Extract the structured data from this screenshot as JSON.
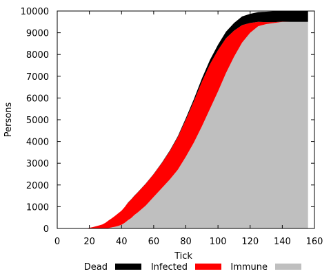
{
  "chart_data": {
    "type": "area",
    "stacked": true,
    "xlabel": "Tick",
    "ylabel": "Persons",
    "xlim": [
      0,
      160
    ],
    "ylim": [
      0,
      10000
    ],
    "x_ticks": [
      0,
      20,
      40,
      60,
      80,
      100,
      120,
      140,
      160
    ],
    "y_ticks": [
      0,
      1000,
      2000,
      3000,
      4000,
      5000,
      6000,
      7000,
      8000,
      9000,
      10000
    ],
    "grid": false,
    "legend_position": "bottom",
    "x": [
      0,
      18,
      20,
      22,
      24,
      26,
      28,
      30,
      32,
      34,
      36,
      38,
      40,
      42,
      44,
      46,
      48,
      50,
      55,
      60,
      65,
      70,
      75,
      80,
      85,
      90,
      95,
      100,
      105,
      110,
      115,
      120,
      125,
      130,
      135,
      140,
      145,
      150,
      156
    ],
    "series": [
      {
        "name": "Immune",
        "color": "#bfbfbf",
        "values": [
          0,
          0,
          0,
          0,
          0,
          0,
          0,
          0,
          20,
          50,
          80,
          120,
          170,
          260,
          380,
          480,
          620,
          730,
          1050,
          1450,
          1850,
          2250,
          2700,
          3300,
          3950,
          4700,
          5500,
          6300,
          7150,
          7900,
          8550,
          9000,
          9300,
          9400,
          9450,
          9500,
          9500,
          9500,
          9500
        ]
      },
      {
        "name": "Infected",
        "color": "#ff0000",
        "values": [
          0,
          0,
          30,
          60,
          100,
          140,
          180,
          260,
          350,
          420,
          500,
          580,
          650,
          730,
          800,
          850,
          880,
          920,
          1000,
          1050,
          1150,
          1300,
          1500,
          1700,
          1900,
          2050,
          2050,
          1900,
          1600,
          1200,
          800,
          450,
          200,
          90,
          40,
          10,
          0,
          0,
          0
        ]
      },
      {
        "name": "Dead",
        "color": "#000000",
        "values": [
          0,
          0,
          0,
          0,
          0,
          0,
          0,
          0,
          0,
          0,
          0,
          0,
          0,
          0,
          10,
          10,
          10,
          10,
          10,
          10,
          20,
          30,
          40,
          70,
          100,
          150,
          200,
          250,
          300,
          350,
          400,
          420,
          450,
          480,
          500,
          500,
          500,
          500,
          500
        ]
      }
    ]
  }
}
